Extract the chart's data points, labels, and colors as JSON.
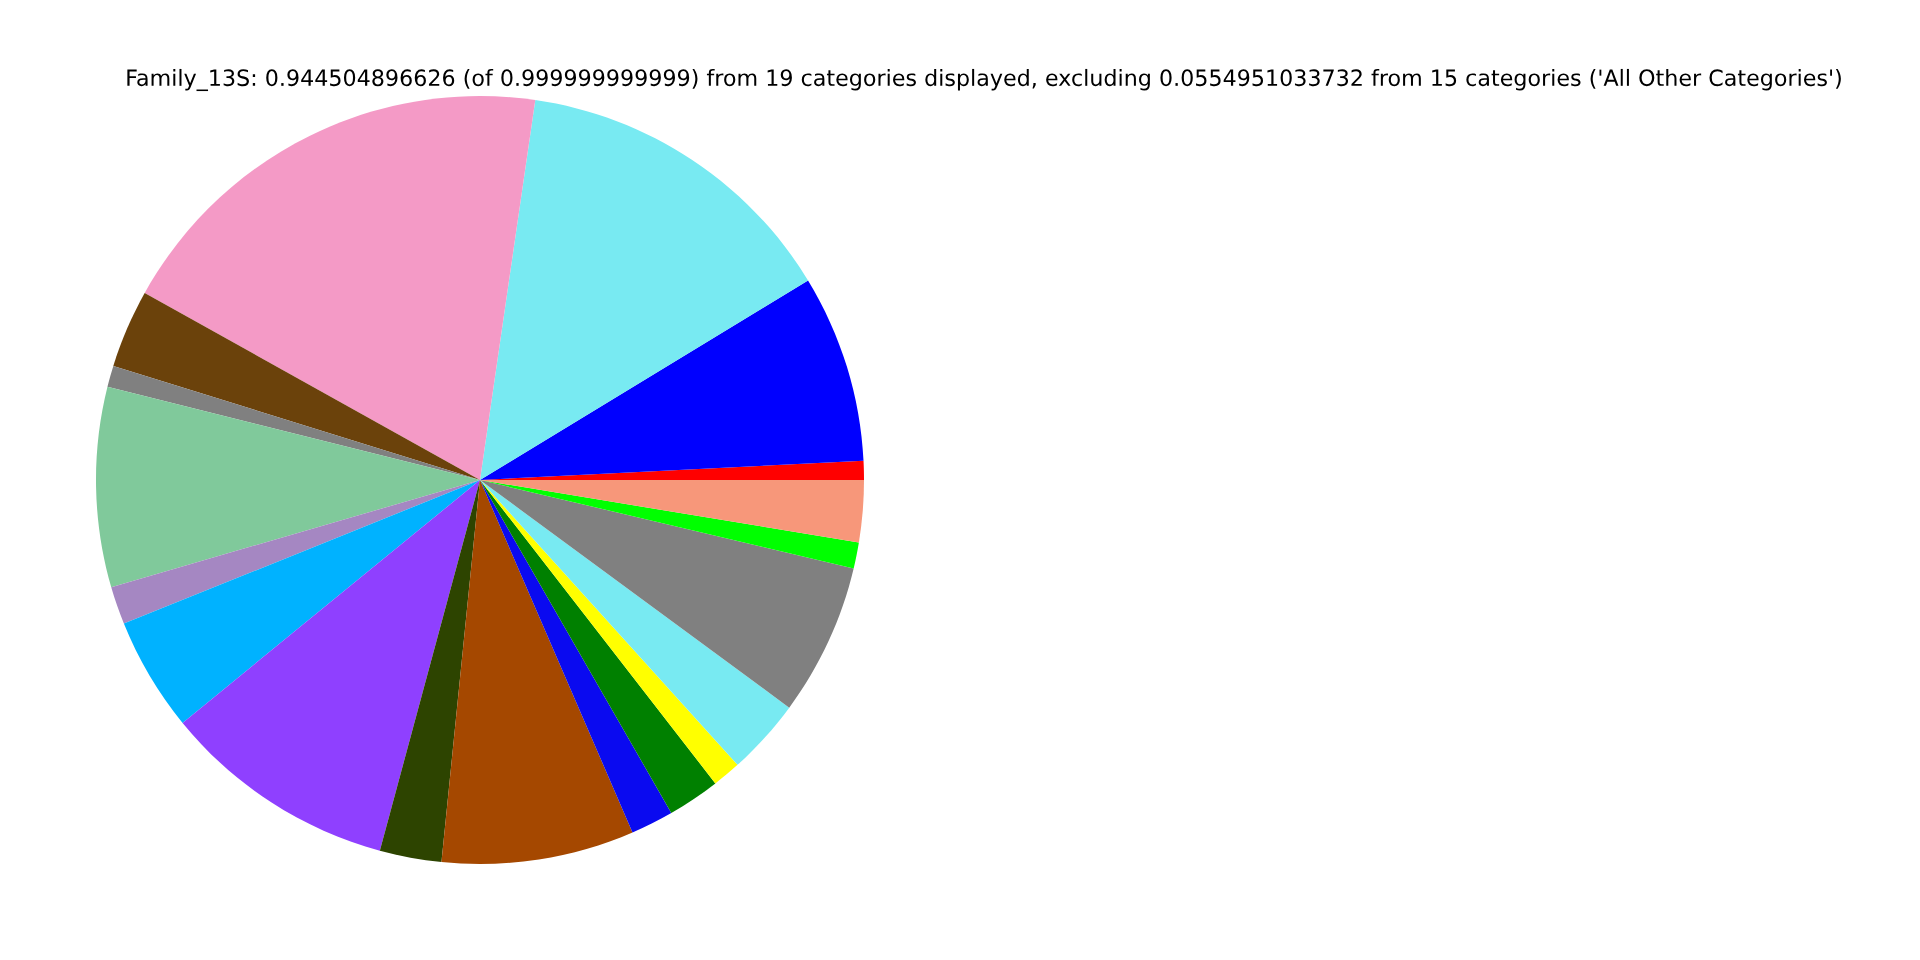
{
  "chart_data": {
    "type": "pie",
    "title": "Family_13S: 0.944504896626 (of 0.999999999999) from 19 categories displayed, excluding 0.0554951033732 from 15 categories ('All Other Categories')",
    "categories": [
      null,
      null,
      null,
      null,
      null,
      null,
      null,
      null,
      null,
      null,
      null,
      null,
      null,
      null,
      null,
      null,
      null,
      null,
      null
    ],
    "values": [
      0.8,
      7.9,
      14.0,
      19.2,
      3.3,
      0.9,
      8.4,
      1.6,
      4.8,
      9.9,
      2.6,
      8.1,
      1.8,
      2.2,
      1.2,
      3.2,
      6.4,
      1.1,
      2.6
    ],
    "colors": [
      "#ff0000",
      "#0000ff",
      "#78eaf2",
      "#f49ac6",
      "#6b420b",
      "#808080",
      "#80c99b",
      "#a587c2",
      "#00b2ff",
      "#8f40ff",
      "#2d4400",
      "#a54800",
      "#0a0af0",
      "#008000",
      "#ffff00",
      "#78eaf2",
      "#808080",
      "#00ff00",
      "#f7977a"
    ]
  }
}
